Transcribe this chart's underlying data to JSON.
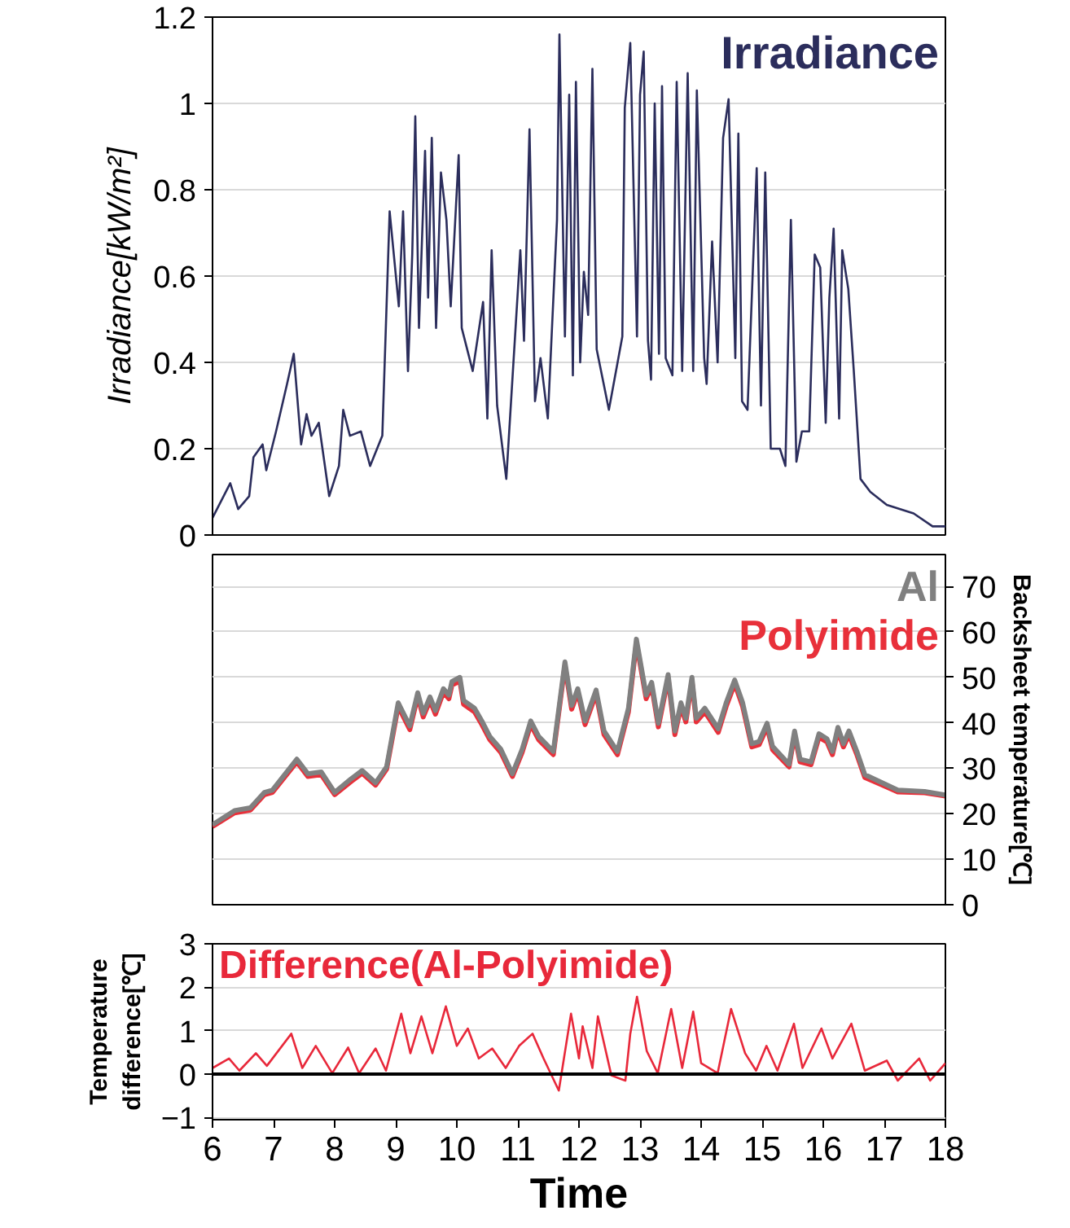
{
  "chart_data": [
    {
      "type": "line",
      "ylabel": "Irradiance[kW/m²]",
      "xlim": [
        6,
        18
      ],
      "xticks": [
        6,
        7,
        8,
        9,
        10,
        11,
        12,
        13,
        14,
        15,
        16,
        17,
        18
      ],
      "ylim": [
        0,
        1.2
      ],
      "yticks": [
        0,
        0.2,
        0.4,
        0.6,
        0.8,
        1,
        1.2
      ],
      "grid": "y",
      "tick_labels": "y",
      "series": [
        {
          "name": "Irradiance",
          "color": "#2b2d5c",
          "x": [
            6.0,
            6.29,
            6.42,
            6.6,
            6.67,
            6.82,
            6.88,
            7.04,
            7.22,
            7.33,
            7.45,
            7.54,
            7.62,
            7.74,
            7.91,
            8.07,
            8.14,
            8.25,
            8.43,
            8.58,
            8.78,
            8.87,
            8.9,
            9.05,
            9.12,
            9.2,
            9.27,
            9.32,
            9.38,
            9.48,
            9.53,
            9.59,
            9.66,
            9.74,
            9.83,
            9.9,
            10.03,
            10.08,
            10.26,
            10.43,
            10.5,
            10.57,
            10.66,
            10.81,
            11.04,
            11.1,
            11.19,
            11.28,
            11.37,
            11.49,
            11.64,
            11.68,
            11.77,
            11.84,
            11.9,
            11.95,
            12.02,
            12.08,
            12.15,
            12.22,
            12.29,
            12.49,
            12.71,
            12.75,
            12.84,
            12.95,
            13.0,
            13.06,
            13.13,
            13.18,
            13.24,
            13.31,
            13.36,
            13.42,
            13.53,
            13.6,
            13.69,
            13.78,
            13.87,
            13.93,
            14.05,
            14.09,
            14.18,
            14.27,
            14.36,
            14.45,
            14.56,
            14.61,
            14.67,
            14.76,
            14.91,
            14.98,
            15.05,
            15.14,
            15.29,
            15.38,
            15.47,
            15.56,
            15.65,
            15.77,
            15.86,
            15.95,
            16.04,
            16.1,
            16.17,
            16.26,
            16.31,
            16.41,
            16.5,
            16.61,
            16.77,
            17.04,
            17.48,
            17.79,
            18.0
          ],
          "values": [
            0.04,
            0.12,
            0.06,
            0.09,
            0.18,
            0.21,
            0.15,
            0.24,
            0.35,
            0.42,
            0.21,
            0.28,
            0.23,
            0.26,
            0.09,
            0.16,
            0.29,
            0.23,
            0.24,
            0.16,
            0.23,
            0.62,
            0.75,
            0.53,
            0.75,
            0.38,
            0.65,
            0.97,
            0.48,
            0.89,
            0.55,
            0.92,
            0.48,
            0.84,
            0.73,
            0.53,
            0.88,
            0.48,
            0.38,
            0.54,
            0.27,
            0.66,
            0.3,
            0.13,
            0.66,
            0.45,
            0.94,
            0.31,
            0.41,
            0.27,
            0.73,
            1.16,
            0.46,
            1.02,
            0.37,
            1.05,
            0.4,
            0.61,
            0.51,
            1.08,
            0.43,
            0.29,
            0.46,
            0.99,
            1.14,
            0.46,
            1.02,
            1.12,
            0.45,
            0.36,
            1.0,
            0.42,
            1.04,
            0.41,
            0.37,
            1.05,
            0.38,
            1.07,
            0.38,
            1.03,
            0.41,
            0.35,
            0.68,
            0.4,
            0.92,
            1.01,
            0.41,
            0.93,
            0.31,
            0.29,
            0.85,
            0.3,
            0.84,
            0.2,
            0.2,
            0.16,
            0.73,
            0.17,
            0.24,
            0.24,
            0.65,
            0.62,
            0.26,
            0.55,
            0.71,
            0.27,
            0.66,
            0.57,
            0.38,
            0.13,
            0.1,
            0.07,
            0.05,
            0.02,
            0.02
          ]
        }
      ]
    },
    {
      "type": "line",
      "y2label": "Backsheet temperature[℃]",
      "xlim": [
        6,
        18
      ],
      "xticks": [
        6,
        7,
        8,
        9,
        10,
        11,
        12,
        13,
        14,
        15,
        16,
        17,
        18
      ],
      "y2lim": [
        0,
        77
      ],
      "y2ticks": [
        0,
        10,
        20,
        30,
        40,
        50,
        60,
        70
      ],
      "grid": "y",
      "tick_labels": "y",
      "series": [
        {
          "name": "Polyimide",
          "color": "#e8303a",
          "axis": "y2",
          "x": [
            6.0,
            6.36,
            6.62,
            6.85,
            6.98,
            7.38,
            7.56,
            7.78,
            8.0,
            8.27,
            8.45,
            8.67,
            8.85,
            9.04,
            9.23,
            9.36,
            9.45,
            9.56,
            9.65,
            9.78,
            9.87,
            9.92,
            10.05,
            10.11,
            10.29,
            10.41,
            10.54,
            10.72,
            10.91,
            11.07,
            11.21,
            11.34,
            11.58,
            11.77,
            11.88,
            11.98,
            12.1,
            12.28,
            12.41,
            12.63,
            12.81,
            12.94,
            13.1,
            13.19,
            13.3,
            13.46,
            13.57,
            13.67,
            13.75,
            13.85,
            13.92,
            14.06,
            14.28,
            14.41,
            14.55,
            14.68,
            14.83,
            14.95,
            15.08,
            15.17,
            15.44,
            15.53,
            15.62,
            15.8,
            15.93,
            16.06,
            16.15,
            16.24,
            16.33,
            16.42,
            16.55,
            16.68,
            16.95,
            17.22,
            17.66,
            18.0
          ],
          "values": [
            17.2,
            20.2,
            20.8,
            24.2,
            24.7,
            31.4,
            28.2,
            28.6,
            24.2,
            27.1,
            28.9,
            26.3,
            29.8,
            43.6,
            38.5,
            45.8,
            41.3,
            44.9,
            41.9,
            46.7,
            45.3,
            48.3,
            49.2,
            44.1,
            42.4,
            39.6,
            36.3,
            33.5,
            28.2,
            33.5,
            39.6,
            36.3,
            33.0,
            52.6,
            43.0,
            46.7,
            39.6,
            46.4,
            37.4,
            33.0,
            42.4,
            57.6,
            45.3,
            48.1,
            39.1,
            49.8,
            37.4,
            43.6,
            40.2,
            49.2,
            40.2,
            42.4,
            37.9,
            43.6,
            48.6,
            43.6,
            34.7,
            35.2,
            39.1,
            34.1,
            30.3,
            37.4,
            31.4,
            30.8,
            36.8,
            35.8,
            33.0,
            38.2,
            34.7,
            37.4,
            33.0,
            28.0,
            26.4,
            24.8,
            24.6,
            23.9
          ]
        },
        {
          "name": "Al",
          "color": "#808080",
          "axis": "y2",
          "x": [
            6.0,
            6.36,
            6.62,
            6.85,
            6.98,
            7.38,
            7.56,
            7.78,
            8.0,
            8.27,
            8.45,
            8.67,
            8.85,
            9.04,
            9.23,
            9.36,
            9.45,
            9.56,
            9.65,
            9.78,
            9.87,
            9.92,
            10.05,
            10.11,
            10.29,
            10.41,
            10.54,
            10.72,
            10.91,
            11.07,
            11.21,
            11.34,
            11.58,
            11.77,
            11.88,
            11.98,
            12.1,
            12.28,
            12.41,
            12.63,
            12.81,
            12.94,
            13.1,
            13.19,
            13.3,
            13.46,
            13.57,
            13.67,
            13.75,
            13.85,
            13.92,
            14.06,
            14.28,
            14.41,
            14.55,
            14.68,
            14.83,
            14.95,
            15.08,
            15.17,
            15.44,
            15.53,
            15.62,
            15.8,
            15.93,
            16.06,
            16.15,
            16.24,
            16.33,
            16.42,
            16.55,
            16.68,
            16.95,
            17.22,
            17.66,
            18.0
          ],
          "values": [
            17.6,
            20.7,
            21.3,
            24.7,
            25.2,
            32.0,
            28.8,
            29.2,
            24.7,
            27.7,
            29.5,
            26.8,
            30.3,
            44.4,
            39.3,
            46.6,
            42.1,
            45.7,
            42.7,
            47.5,
            46.1,
            49.1,
            50.0,
            44.9,
            43.2,
            40.4,
            37.0,
            34.2,
            28.8,
            34.2,
            40.4,
            37.0,
            33.7,
            53.4,
            43.8,
            47.5,
            40.4,
            47.2,
            38.2,
            33.7,
            43.2,
            58.4,
            46.1,
            48.9,
            39.9,
            50.6,
            38.2,
            44.4,
            41.0,
            50.0,
            41.0,
            43.2,
            38.7,
            44.4,
            49.4,
            44.4,
            35.4,
            35.9,
            39.9,
            34.8,
            30.9,
            38.2,
            32.0,
            31.4,
            37.6,
            36.5,
            33.7,
            39.0,
            35.4,
            38.2,
            33.7,
            28.6,
            26.9,
            25.2,
            24.9,
            24.1
          ]
        }
      ]
    },
    {
      "type": "line",
      "xlabel": "Time",
      "ylabel": "Temperature difference[℃]",
      "xlim": [
        6,
        18
      ],
      "xticks": [
        6,
        7,
        8,
        9,
        10,
        11,
        12,
        13,
        14,
        15,
        16,
        17,
        18
      ],
      "ylim": [
        -1.05,
        3
      ],
      "yticks": [
        -1,
        0,
        1,
        2,
        3
      ],
      "grid": "y",
      "ref_lines": [
        {
          "axis": "y",
          "value": 0,
          "color": "#000000"
        }
      ],
      "series": [
        {
          "name": "Difference(Al-Polyimide)",
          "color": "#e8283a",
          "x": [
            6.0,
            6.27,
            6.44,
            6.71,
            6.89,
            7.29,
            7.47,
            7.69,
            7.96,
            8.22,
            8.4,
            8.67,
            8.84,
            9.09,
            9.24,
            9.42,
            9.6,
            9.82,
            10.0,
            10.18,
            10.36,
            10.58,
            10.8,
            11.02,
            11.24,
            11.42,
            11.67,
            11.87,
            12.0,
            12.06,
            12.22,
            12.31,
            12.53,
            12.76,
            12.84,
            12.95,
            13.11,
            13.29,
            13.51,
            13.69,
            13.87,
            14.0,
            14.27,
            14.49,
            14.72,
            14.9,
            15.07,
            15.25,
            15.52,
            15.66,
            15.97,
            16.15,
            16.46,
            16.68,
            17.04,
            17.22,
            17.57,
            17.75,
            18.0
          ],
          "values": [
            0.14,
            0.36,
            0.08,
            0.48,
            0.19,
            0.93,
            0.14,
            0.65,
            0.02,
            0.61,
            0.02,
            0.59,
            0.08,
            1.39,
            0.48,
            1.33,
            0.48,
            1.56,
            0.65,
            1.05,
            0.36,
            0.59,
            0.14,
            0.65,
            0.93,
            0.36,
            -0.38,
            1.39,
            0.36,
            1.1,
            0.14,
            1.33,
            -0.03,
            -0.15,
            0.93,
            1.78,
            0.53,
            0.02,
            1.5,
            0.14,
            1.44,
            0.25,
            0.02,
            1.5,
            0.48,
            0.08,
            0.65,
            0.08,
            1.16,
            0.14,
            1.05,
            0.36,
            1.16,
            0.08,
            0.31,
            -0.15,
            0.36,
            -0.15,
            0.25
          ]
        }
      ]
    }
  ]
}
